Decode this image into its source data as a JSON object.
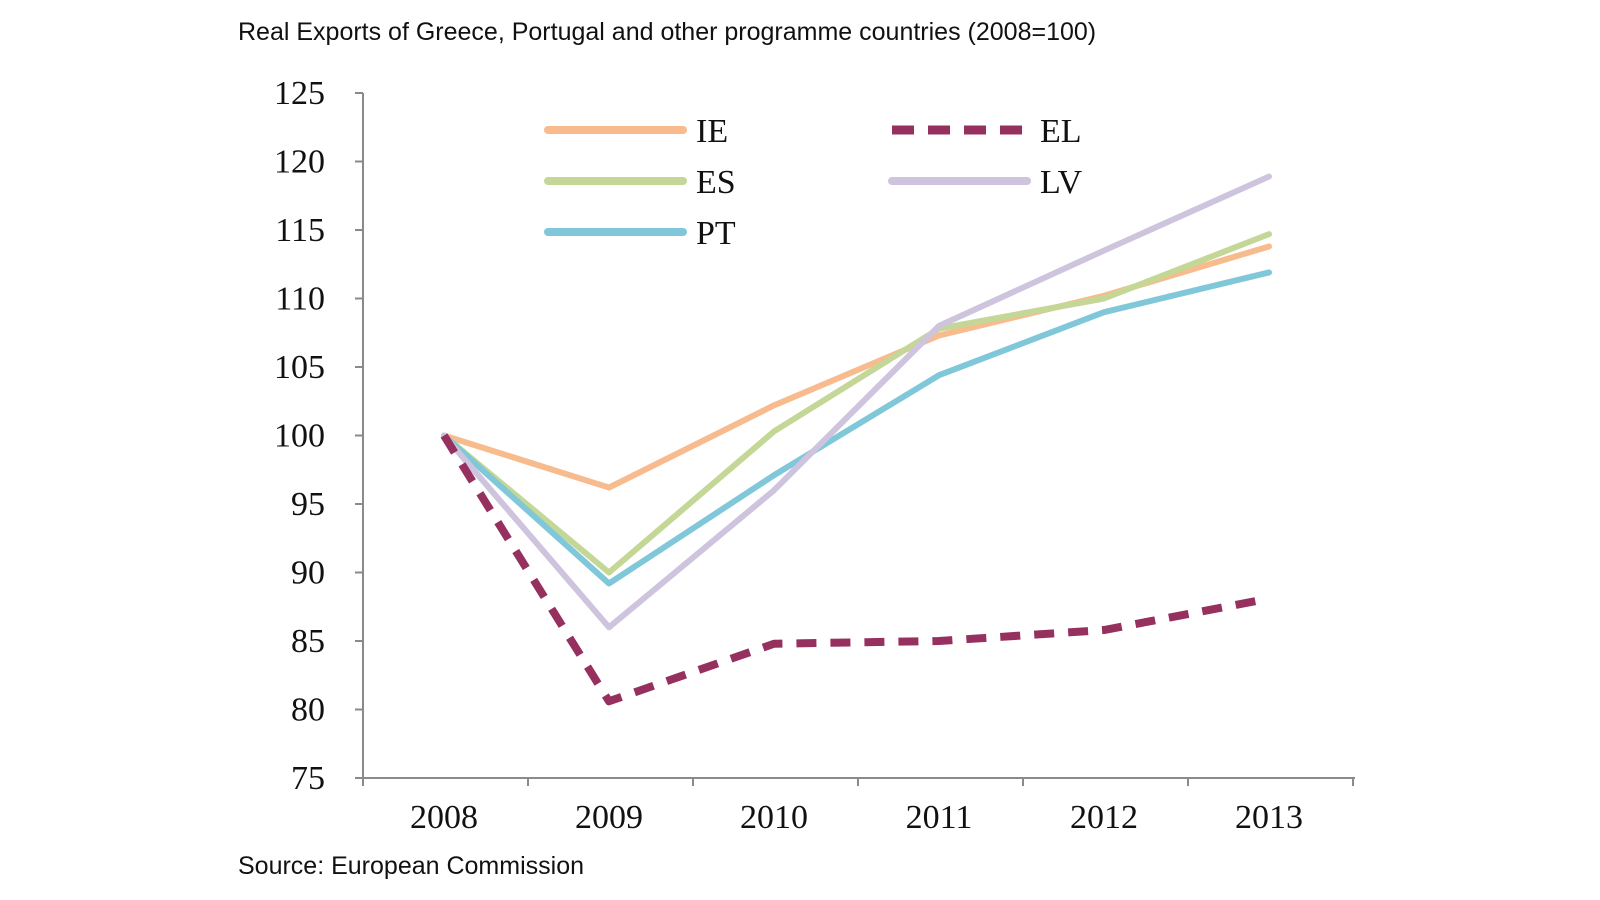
{
  "title": "Real Exports of Greece, Portugal and other programme countries (2008=100)",
  "source": "Source: European Commission",
  "chart_data": {
    "type": "line",
    "title": "Real Exports of Greece, Portugal and other programme countries (2008=100)",
    "xlabel": "",
    "ylabel": "",
    "categories": [
      "2008",
      "2009",
      "2010",
      "2011",
      "2012",
      "2013"
    ],
    "ylim": [
      75,
      125
    ],
    "yticks": [
      75,
      80,
      85,
      90,
      95,
      100,
      105,
      110,
      115,
      120,
      125
    ],
    "grid": false,
    "legend_placement": "top-left inside plot",
    "series": [
      {
        "name": "IE",
        "color": "#f7bb8e",
        "dash": false,
        "values": [
          100,
          96.2,
          102.2,
          107.3,
          110.2,
          113.8
        ]
      },
      {
        "name": "EL",
        "color": "#96305f",
        "dash": true,
        "values": [
          100,
          80.6,
          84.8,
          85.0,
          85.8,
          88.1
        ]
      },
      {
        "name": "ES",
        "color": "#c4d796",
        "dash": false,
        "values": [
          100,
          90.0,
          100.3,
          107.8,
          110.0,
          114.7
        ]
      },
      {
        "name": "LV",
        "color": "#cec4de",
        "dash": false,
        "values": [
          100,
          86.0,
          96.0,
          108.0,
          113.5,
          118.9
        ]
      },
      {
        "name": "PT",
        "color": "#80c8d9",
        "dash": false,
        "values": [
          100,
          89.2,
          97.1,
          104.4,
          109.0,
          111.9
        ]
      }
    ]
  }
}
